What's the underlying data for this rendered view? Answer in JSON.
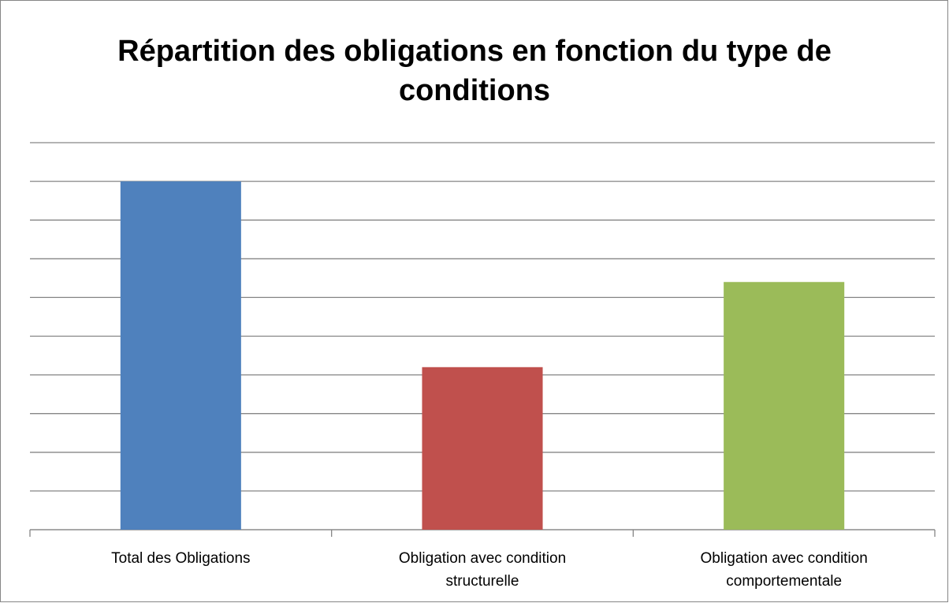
{
  "chart_data": {
    "type": "bar",
    "title": "Répartition des obligations en fonction du type de conditions",
    "categories": [
      "Total des Obligations",
      "Obligation avec condition structurelle",
      "Obligation avec condition comportementale"
    ],
    "values": [
      9,
      4.2,
      6.4
    ],
    "colors": [
      "#4f81bd",
      "#c0504d",
      "#9bbb59"
    ],
    "ylim": [
      0,
      10
    ],
    "yticks": [
      0,
      1,
      2,
      3,
      4,
      5,
      6,
      7,
      8,
      9,
      10
    ],
    "grid": true
  }
}
